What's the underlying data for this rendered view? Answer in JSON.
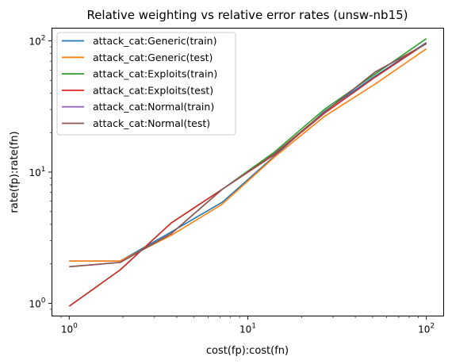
{
  "chart_data": {
    "type": "line",
    "title": "Relative weighting vs relative error rates (unsw-nb15)",
    "xlabel": "cost(fp):cost(fn)",
    "ylabel": "rate(fp):rate(fn)",
    "xscale": "log",
    "yscale": "log",
    "xlim": [
      0.8,
      125
    ],
    "ylim": [
      0.8,
      125
    ],
    "grid": false,
    "legend_position": "top-left",
    "xticks": [
      {
        "value": 1,
        "base": "10",
        "exp": "0"
      },
      {
        "value": 10,
        "base": "10",
        "exp": "1"
      },
      {
        "value": 100,
        "base": "10",
        "exp": "2"
      }
    ],
    "yticks": [
      {
        "value": 1,
        "base": "10",
        "exp": "0"
      },
      {
        "value": 10,
        "base": "10",
        "exp": "1"
      },
      {
        "value": 100,
        "base": "10",
        "exp": "2"
      }
    ],
    "x": [
      1,
      1.93,
      3.73,
      7.2,
      13.9,
      26.8,
      51.8,
      100
    ],
    "series": [
      {
        "name": "attack_cat:Generic(train)",
        "color": "#1f77b4",
        "values": [
          2.1,
          2.1,
          3.5,
          5.9,
          13.0,
          29.0,
          54.0,
          97.0
        ]
      },
      {
        "name": "attack_cat:Generic(test)",
        "color": "#ff7f0e",
        "values": [
          2.1,
          2.1,
          3.3,
          5.7,
          12.8,
          26.5,
          47.0,
          87.0
        ]
      },
      {
        "name": "attack_cat:Exploits(train)",
        "color": "#2ca02c",
        "values": [
          0.95,
          1.8,
          4.1,
          7.4,
          14.0,
          30.0,
          56.0,
          104.0
        ]
      },
      {
        "name": "attack_cat:Exploits(test)",
        "color": "#d62728",
        "values": [
          0.95,
          1.8,
          4.1,
          7.4,
          13.4,
          28.0,
          53.0,
          96.0
        ]
      },
      {
        "name": "attack_cat:Normal(train)",
        "color": "#9467bd",
        "values": [
          1.9,
          2.05,
          3.4,
          7.4,
          13.6,
          28.5,
          58.0,
          95.0
        ]
      },
      {
        "name": "attack_cat:Normal(test)",
        "color": "#8c564b",
        "values": [
          1.9,
          2.05,
          3.4,
          7.4,
          13.6,
          28.5,
          58.0,
          95.0
        ]
      }
    ]
  }
}
